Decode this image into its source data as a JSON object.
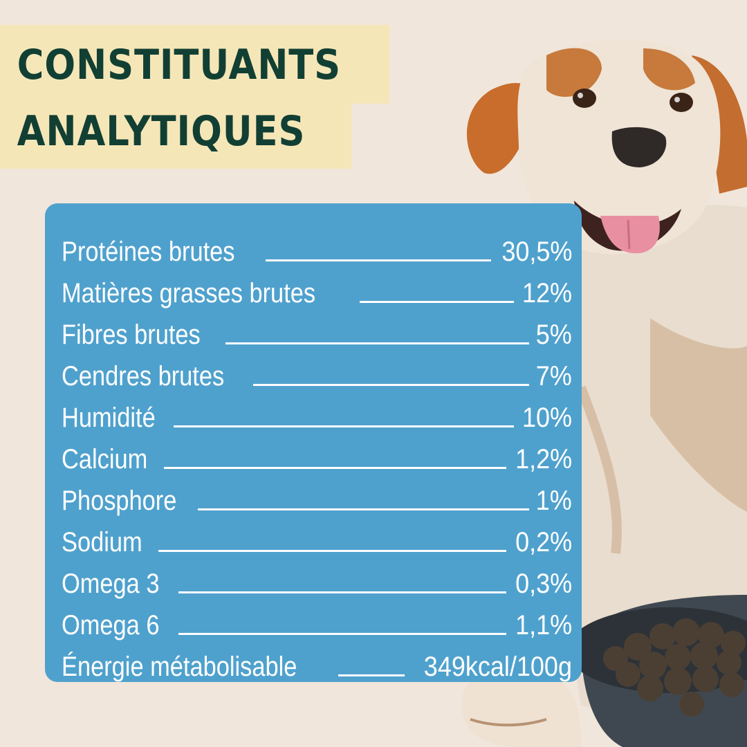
{
  "title": {
    "line1": "CONSTITUANTS",
    "line2": "ANALYTIQUES"
  },
  "colors": {
    "background": "#f1e6dc",
    "title_badge": "#f5e6b8",
    "title_text": "#123f33",
    "panel": "#4fa1cd",
    "panel_text": "#ffffff"
  },
  "constituents": [
    {
      "label": "Protéines brutes",
      "value": "30,5%"
    },
    {
      "label": "Matières grasses brutes",
      "value": "12%"
    },
    {
      "label": "Fibres brutes",
      "value": "5%"
    },
    {
      "label": "Cendres brutes",
      "value": "7%"
    },
    {
      "label": "Humidité",
      "value": "10%"
    },
    {
      "label": "Calcium",
      "value": "1,2%"
    },
    {
      "label": "Phosphore",
      "value": "1%"
    },
    {
      "label": "Sodium",
      "value": "0,2%"
    },
    {
      "label": "Omega 3",
      "value": "0,3%"
    },
    {
      "label": "Omega 6",
      "value": "1,1%"
    },
    {
      "label": "Énergie métabolisable",
      "value": "349kcal/100g"
    }
  ],
  "illustration": {
    "subject": "dog-icon",
    "bowl": "food-bowl-icon"
  }
}
